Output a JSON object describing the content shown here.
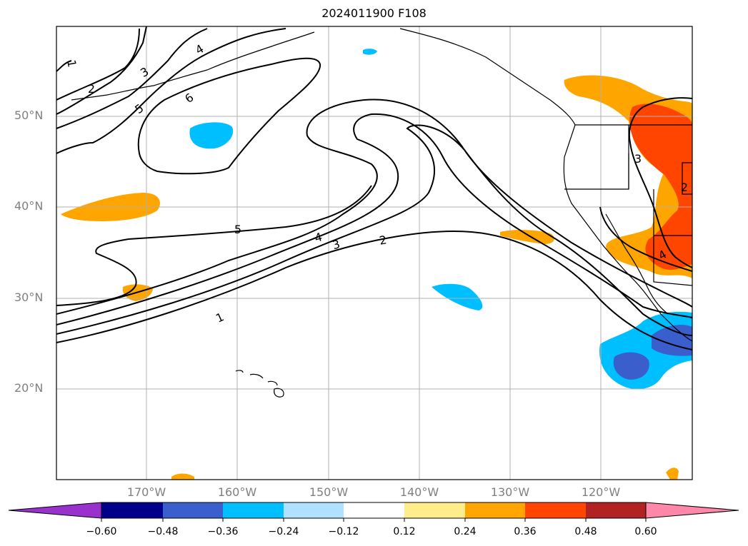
{
  "title": "2024011900 F108",
  "map": {
    "lat_labels": [
      "50°N",
      "40°N",
      "30°N",
      "20°N"
    ],
    "lon_labels": [
      "170°W",
      "160°W",
      "150°W",
      "140°W",
      "130°W",
      "120°W"
    ],
    "contour_labels": [
      "1",
      "2",
      "3",
      "4",
      "5",
      "6",
      "4",
      "5",
      "3",
      "2",
      "5",
      "4",
      "3",
      "2",
      "1",
      "3",
      "2",
      "4"
    ]
  },
  "colorbar": {
    "ticks": [
      "−0.60",
      "−0.48",
      "−0.36",
      "−0.24",
      "−0.12",
      "0.12",
      "0.24",
      "0.36",
      "0.48",
      "0.60"
    ],
    "colors": [
      "#9932cc",
      "#00008b",
      "#3a5fcd",
      "#00bfff",
      "#b0e2ff",
      "#ffffff",
      "#ffec8b",
      "#ffa500",
      "#ff4500",
      "#b22222",
      "#ff88aa"
    ]
  }
}
